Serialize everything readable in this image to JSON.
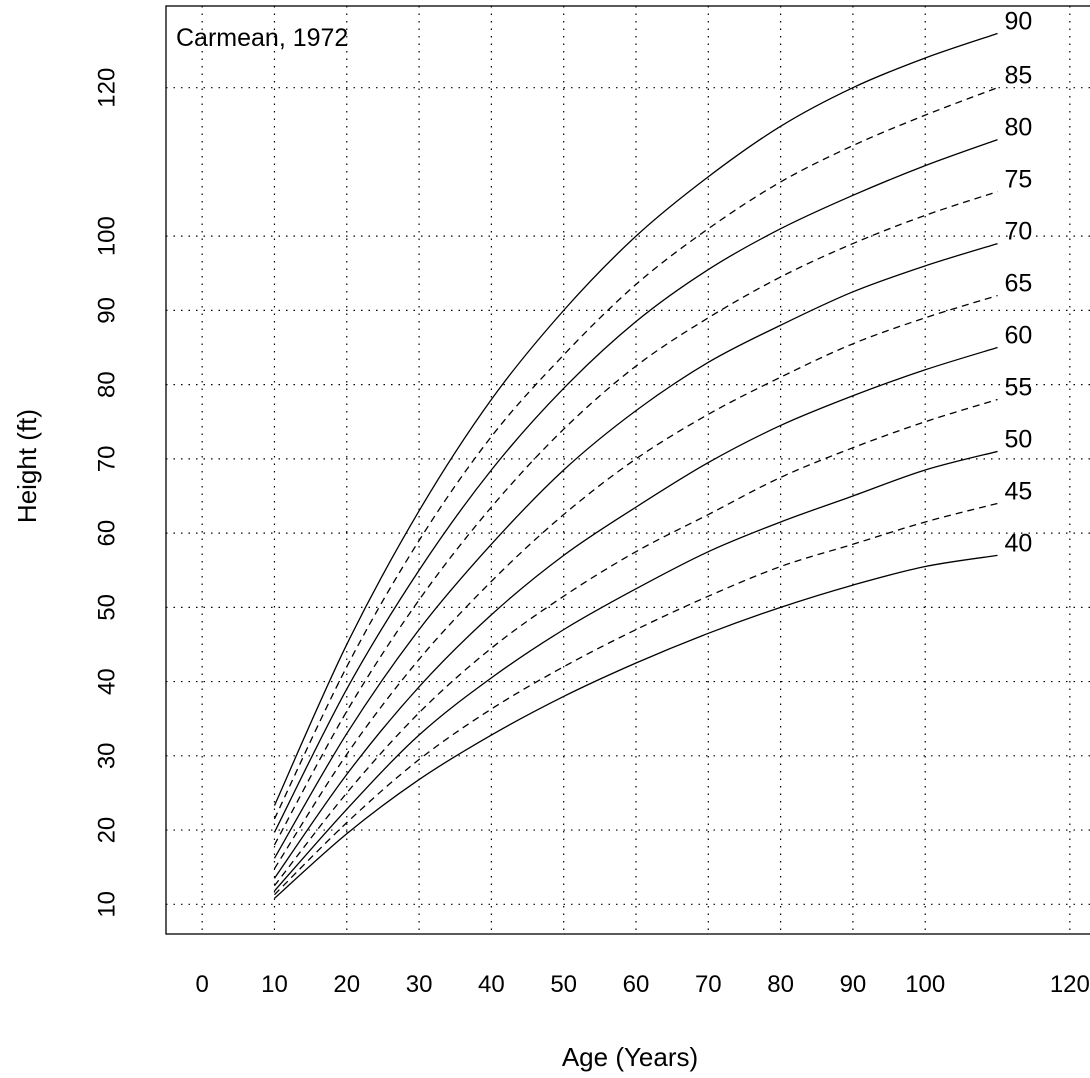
{
  "chart_data": {
    "type": "line",
    "annotation": "Carmean, 1972",
    "xlabel": "Age (Years)",
    "ylabel": "Height (ft)",
    "xlim": [
      -5,
      125
    ],
    "ylim": [
      6,
      131
    ],
    "x_ticks": [
      "0",
      "10",
      "20",
      "30",
      "40",
      "50",
      "60",
      "70",
      "80",
      "90",
      "100",
      "120"
    ],
    "x_tick_values": [
      0,
      10,
      20,
      30,
      40,
      50,
      60,
      70,
      80,
      90,
      100,
      120
    ],
    "y_ticks": [
      "10",
      "20",
      "30",
      "40",
      "50",
      "60",
      "70",
      "80",
      "90",
      "100",
      "120"
    ],
    "y_tick_values": [
      10,
      20,
      30,
      40,
      50,
      60,
      70,
      80,
      90,
      100,
      120
    ],
    "grid": true,
    "x": [
      10,
      20,
      30,
      40,
      50,
      60,
      70,
      80,
      90,
      100,
      110
    ],
    "series": [
      {
        "name": "90",
        "style": "solid",
        "values": [
          23.3,
          45.0,
          63.0,
          78.0,
          90.0,
          100.0,
          108.0,
          114.8,
          120.0,
          124.0,
          127.3
        ]
      },
      {
        "name": "85",
        "style": "dashed",
        "values": [
          21.5,
          42.0,
          59.0,
          73.0,
          84.0,
          93.5,
          101.0,
          107.3,
          112.2,
          116.3,
          120.0
        ]
      },
      {
        "name": "80",
        "style": "solid",
        "values": [
          19.7,
          39.0,
          55.0,
          68.5,
          79.5,
          88.5,
          95.5,
          101.0,
          105.5,
          109.5,
          113.0
        ]
      },
      {
        "name": "75",
        "style": "dashed",
        "values": [
          18.0,
          36.0,
          51.0,
          63.5,
          74.0,
          82.5,
          89.0,
          94.5,
          99.0,
          102.8,
          106.0
        ]
      },
      {
        "name": "70",
        "style": "solid",
        "values": [
          16.2,
          33.0,
          47.0,
          58.5,
          68.5,
          76.5,
          83.0,
          88.0,
          92.5,
          96.0,
          99.0
        ]
      },
      {
        "name": "65",
        "style": "dashed",
        "values": [
          14.8,
          30.2,
          43.0,
          53.5,
          62.5,
          70.0,
          76.0,
          81.0,
          85.5,
          89.0,
          92.0
        ]
      },
      {
        "name": "60",
        "style": "solid",
        "values": [
          13.5,
          27.5,
          39.3,
          49.0,
          57.0,
          63.5,
          69.5,
          74.5,
          78.5,
          82.0,
          85.0
        ]
      },
      {
        "name": "55",
        "style": "dashed",
        "values": [
          12.5,
          25.0,
          35.8,
          44.5,
          51.5,
          57.5,
          62.5,
          67.5,
          71.5,
          75.0,
          78.0
        ]
      },
      {
        "name": "50",
        "style": "solid",
        "values": [
          11.8,
          22.8,
          32.8,
          40.5,
          47.0,
          52.5,
          57.5,
          61.5,
          65.0,
          68.5,
          71.0
        ]
      },
      {
        "name": "45",
        "style": "dashed",
        "values": [
          11.3,
          21.0,
          29.5,
          36.3,
          42.0,
          47.0,
          51.5,
          55.5,
          58.5,
          61.5,
          64.0
        ]
      },
      {
        "name": "40",
        "style": "solid",
        "values": [
          10.8,
          19.5,
          26.8,
          32.8,
          38.0,
          42.5,
          46.5,
          50.0,
          53.0,
          55.5,
          57.0
        ]
      }
    ]
  }
}
